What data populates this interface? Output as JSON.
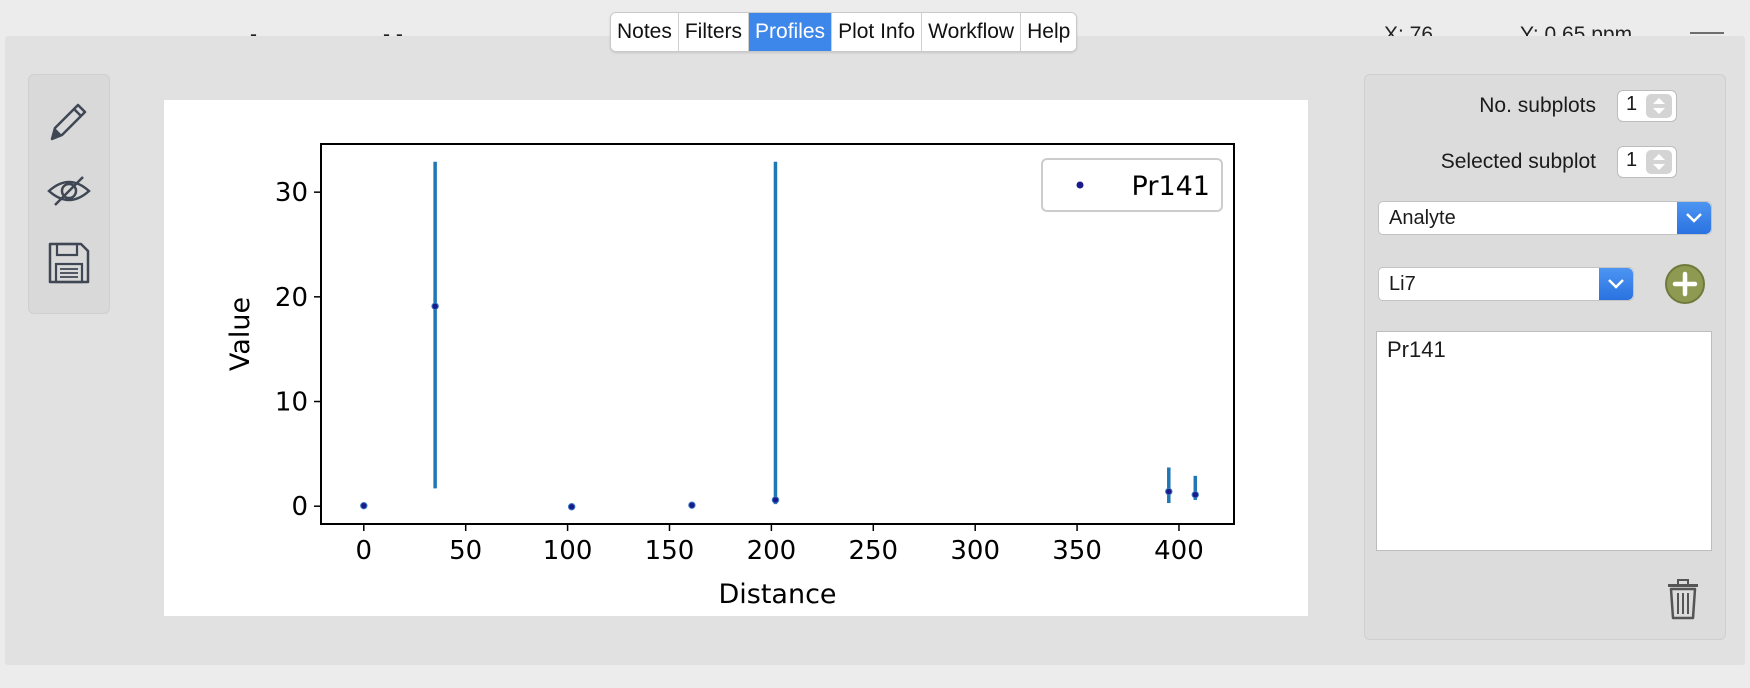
{
  "header": {
    "tabs": [
      {
        "label": "Notes",
        "active": false
      },
      {
        "label": "Filters",
        "active": false
      },
      {
        "label": "Profiles",
        "active": true
      },
      {
        "label": "Plot Info",
        "active": false
      },
      {
        "label": "Workflow",
        "active": false
      },
      {
        "label": "Help",
        "active": false
      }
    ],
    "x_readout": "X: 76",
    "y_readout": "Y: 0.65 ppm",
    "accent_color": "#3d87ea"
  },
  "toolbar": {
    "icons": [
      "pencil-icon",
      "hide-eye-icon",
      "save-disk-icon"
    ]
  },
  "chart_data": {
    "type": "scatter",
    "xlabel": "Distance",
    "ylabel": "Value",
    "xlim": [
      -21,
      427
    ],
    "ylim": [
      -1.7,
      34.6
    ],
    "x_ticks": [
      "0",
      "50",
      "100",
      "150",
      "200",
      "250",
      "300",
      "350",
      "400"
    ],
    "y_ticks": [
      "0",
      "10",
      "20",
      "30"
    ],
    "legend": {
      "position": "top-right"
    },
    "series": [
      {
        "name": "Pr141",
        "marker_color": "#1a1a8c",
        "errorbar_color": "#1f77b4",
        "points": [
          {
            "x": 0,
            "y": 0.05,
            "err_low": 0,
            "err_high": 0
          },
          {
            "x": 35,
            "y": 19.1,
            "err_low": 1.7,
            "err_high": 32.9
          },
          {
            "x": 102,
            "y": -0.05,
            "err_low": 0,
            "err_high": 0
          },
          {
            "x": 161,
            "y": 0.1,
            "err_low": 0,
            "err_high": 0
          },
          {
            "x": 202,
            "y": 0.6,
            "err_low": 0.2,
            "err_high": 32.9
          },
          {
            "x": 395,
            "y": 1.4,
            "err_low": 0.3,
            "err_high": 3.7
          },
          {
            "x": 408,
            "y": 1.1,
            "err_low": 0.6,
            "err_high": 2.9
          }
        ]
      }
    ]
  },
  "side_panel": {
    "no_subplots_label": "No. subplots",
    "no_subplots_value": "1",
    "selected_subplot_label": "Selected subplot",
    "selected_subplot_value": "1",
    "field_type_value": "Analyte",
    "field_value": "Li7",
    "list_items": [
      "Pr141"
    ]
  }
}
